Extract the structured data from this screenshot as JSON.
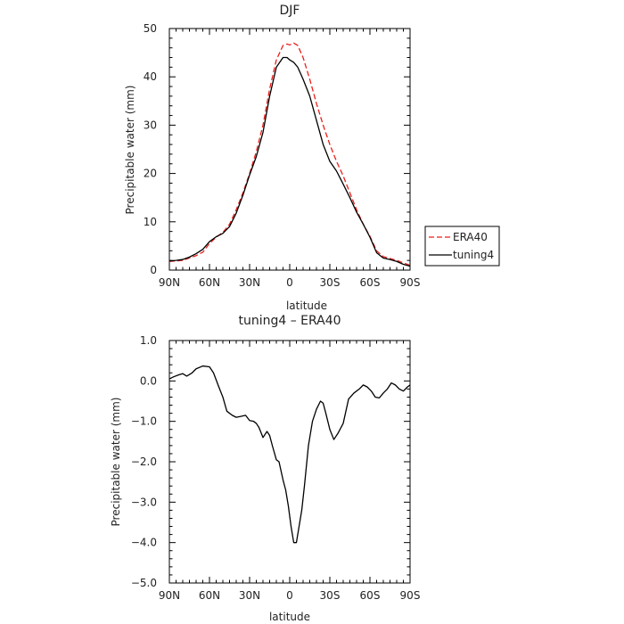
{
  "chart_data": [
    {
      "type": "line",
      "title": "DJF",
      "xlabel": "latitude",
      "ylabel": "Precipitable water (mm)",
      "xlim": [
        90,
        -90
      ],
      "ylim": [
        0,
        50
      ],
      "xticks": [
        {
          "value": 90,
          "label": "90N"
        },
        {
          "value": 60,
          "label": "60N"
        },
        {
          "value": 30,
          "label": "30N"
        },
        {
          "value": 0,
          "label": "0"
        },
        {
          "value": -30,
          "label": "30S"
        },
        {
          "value": -60,
          "label": "60S"
        },
        {
          "value": -90,
          "label": "90S"
        }
      ],
      "yticks": [
        {
          "value": 0,
          "label": "0"
        },
        {
          "value": 10,
          "label": "10"
        },
        {
          "value": 20,
          "label": "20"
        },
        {
          "value": 30,
          "label": "30"
        },
        {
          "value": 40,
          "label": "40"
        },
        {
          "value": 50,
          "label": "50"
        }
      ],
      "legend_position": "outside-right",
      "series": [
        {
          "name": "ERA40",
          "color": "#e8201c",
          "dash": "dashed",
          "x": [
            90,
            85,
            80,
            75,
            70,
            65,
            60,
            55,
            50,
            45,
            40,
            35,
            30,
            25,
            20,
            15,
            10,
            5,
            2,
            0,
            -3,
            -6,
            -10,
            -15,
            -20,
            -25,
            -30,
            -35,
            -40,
            -45,
            -50,
            -55,
            -60,
            -65,
            -70,
            -75,
            -80,
            -85,
            -90
          ],
          "y": [
            1.8,
            1.9,
            2.0,
            2.5,
            3.0,
            3.7,
            5.5,
            6.8,
            7.8,
            9.5,
            12.5,
            16.0,
            20.0,
            24.5,
            30.0,
            37.5,
            43.5,
            46.5,
            46.8,
            46.6,
            47.0,
            46.5,
            44.0,
            39.5,
            34.5,
            30.0,
            26.0,
            22.5,
            19.5,
            16.0,
            12.5,
            9.5,
            7.0,
            4.0,
            2.8,
            2.4,
            2.0,
            1.5,
            1.0
          ]
        },
        {
          "name": "tuning4",
          "color": "#000000",
          "dash": "solid",
          "x": [
            90,
            85,
            80,
            75,
            70,
            65,
            60,
            55,
            50,
            45,
            40,
            35,
            30,
            25,
            20,
            15,
            10,
            5,
            2,
            0,
            -3,
            -6,
            -10,
            -15,
            -20,
            -25,
            -30,
            -35,
            -40,
            -45,
            -50,
            -55,
            -60,
            -65,
            -70,
            -75,
            -80,
            -85,
            -90
          ],
          "y": [
            1.9,
            2.0,
            2.2,
            2.7,
            3.4,
            4.3,
            5.9,
            6.9,
            7.6,
            9.0,
            11.8,
            15.5,
            19.7,
            23.5,
            28.5,
            36.0,
            42.0,
            44.0,
            44.0,
            43.5,
            43.0,
            42.0,
            39.5,
            36.0,
            31.0,
            26.0,
            22.5,
            20.5,
            17.8,
            15.0,
            12.0,
            9.5,
            6.8,
            3.6,
            2.5,
            2.2,
            1.8,
            1.2,
            0.8
          ]
        }
      ]
    },
    {
      "type": "line",
      "title": "tuning4 – ERA40",
      "xlabel": "latitude",
      "ylabel": "Precipitable water (mm)",
      "xlim": [
        90,
        -90
      ],
      "ylim": [
        -5,
        1
      ],
      "xticks": [
        {
          "value": 90,
          "label": "90N"
        },
        {
          "value": 60,
          "label": "60N"
        },
        {
          "value": 30,
          "label": "30N"
        },
        {
          "value": 0,
          "label": "0"
        },
        {
          "value": -30,
          "label": "30S"
        },
        {
          "value": -60,
          "label": "60S"
        },
        {
          "value": -90,
          "label": "90S"
        }
      ],
      "yticks": [
        {
          "value": 1,
          "label": "1.0"
        },
        {
          "value": 0,
          "label": "0.0"
        },
        {
          "value": -1,
          "label": "−1.0"
        },
        {
          "value": -2,
          "label": "−2.0"
        },
        {
          "value": -3,
          "label": "−3.0"
        },
        {
          "value": -4,
          "label": "−4.0"
        },
        {
          "value": -5,
          "label": "−5.0"
        }
      ],
      "series": [
        {
          "name": "tuning4 – ERA40",
          "color": "#000000",
          "dash": "solid",
          "x": [
            90,
            87,
            83,
            80,
            77,
            73,
            70,
            65,
            60,
            57,
            53,
            50,
            47,
            43,
            40,
            37,
            33,
            30,
            27,
            25,
            23,
            20,
            17,
            15,
            13,
            10,
            8,
            5,
            3,
            1,
            -1,
            -3,
            -5,
            -7,
            -9,
            -11,
            -14,
            -17,
            -20,
            -23,
            -25,
            -27,
            -30,
            -33,
            -36,
            -40,
            -44,
            -48,
            -52,
            -55,
            -58,
            -61,
            -64,
            -67,
            -70,
            -73,
            -76,
            -79,
            -82,
            -85,
            -88,
            -90
          ],
          "y": [
            0.05,
            0.1,
            0.15,
            0.18,
            0.12,
            0.2,
            0.3,
            0.37,
            0.35,
            0.2,
            -0.15,
            -0.4,
            -0.75,
            -0.85,
            -0.9,
            -0.88,
            -0.85,
            -0.98,
            -1.0,
            -1.05,
            -1.15,
            -1.4,
            -1.25,
            -1.35,
            -1.6,
            -1.95,
            -2.0,
            -2.45,
            -2.7,
            -3.1,
            -3.6,
            -4.0,
            -4.0,
            -3.6,
            -3.2,
            -2.6,
            -1.6,
            -1.0,
            -0.7,
            -0.5,
            -0.55,
            -0.8,
            -1.2,
            -1.45,
            -1.3,
            -1.05,
            -0.45,
            -0.3,
            -0.2,
            -0.1,
            -0.15,
            -0.25,
            -0.4,
            -0.42,
            -0.3,
            -0.2,
            -0.05,
            -0.1,
            -0.2,
            -0.25,
            -0.15,
            -0.1
          ]
        }
      ]
    }
  ]
}
